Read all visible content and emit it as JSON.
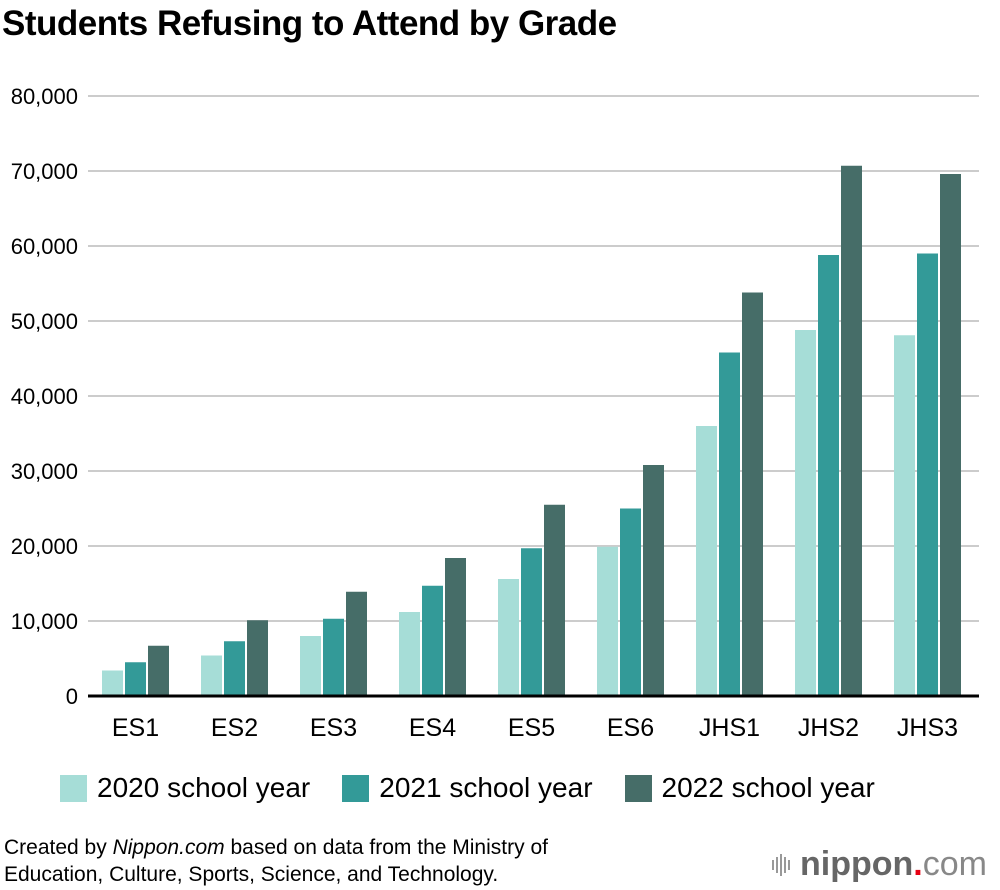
{
  "chart_data": {
    "type": "bar",
    "title": "Students Refusing to Attend by Grade",
    "xlabel": "",
    "ylabel": "",
    "categories": [
      "ES1",
      "ES2",
      "ES3",
      "ES4",
      "ES5",
      "ES6",
      "JHS1",
      "JHS2",
      "JHS3"
    ],
    "series": [
      {
        "name": "2020 school year",
        "color": "#a6ddd7",
        "values": [
          3400,
          5400,
          8000,
          11200,
          15600,
          19900,
          36000,
          48800,
          48100
        ]
      },
      {
        "name": "2021 school year",
        "color": "#339a98",
        "values": [
          4500,
          7300,
          10300,
          14700,
          19700,
          25000,
          45800,
          58800,
          59000
        ]
      },
      {
        "name": "2022 school year",
        "color": "#466d68",
        "values": [
          6700,
          10100,
          13900,
          18400,
          25500,
          30800,
          53800,
          70700,
          69600
        ]
      }
    ],
    "ylim": [
      0,
      80000
    ],
    "yticks": [
      0,
      10000,
      20000,
      30000,
      40000,
      50000,
      60000,
      70000,
      80000
    ],
    "ytick_labels": [
      "0",
      "10,000",
      "20,000",
      "30,000",
      "40,000",
      "50,000",
      "60,000",
      "70,000",
      "80,000"
    ],
    "grid": true,
    "legend_position": "bottom"
  },
  "footer": {
    "prefix": "Created by ",
    "source_name": "Nippon.com",
    "line1_rest": " based on data from the Ministry of",
    "line2": "Education, Culture, Sports, Science, and Technology."
  },
  "logo": {
    "brand": "nippon",
    "dot": ".",
    "tld": "com"
  }
}
